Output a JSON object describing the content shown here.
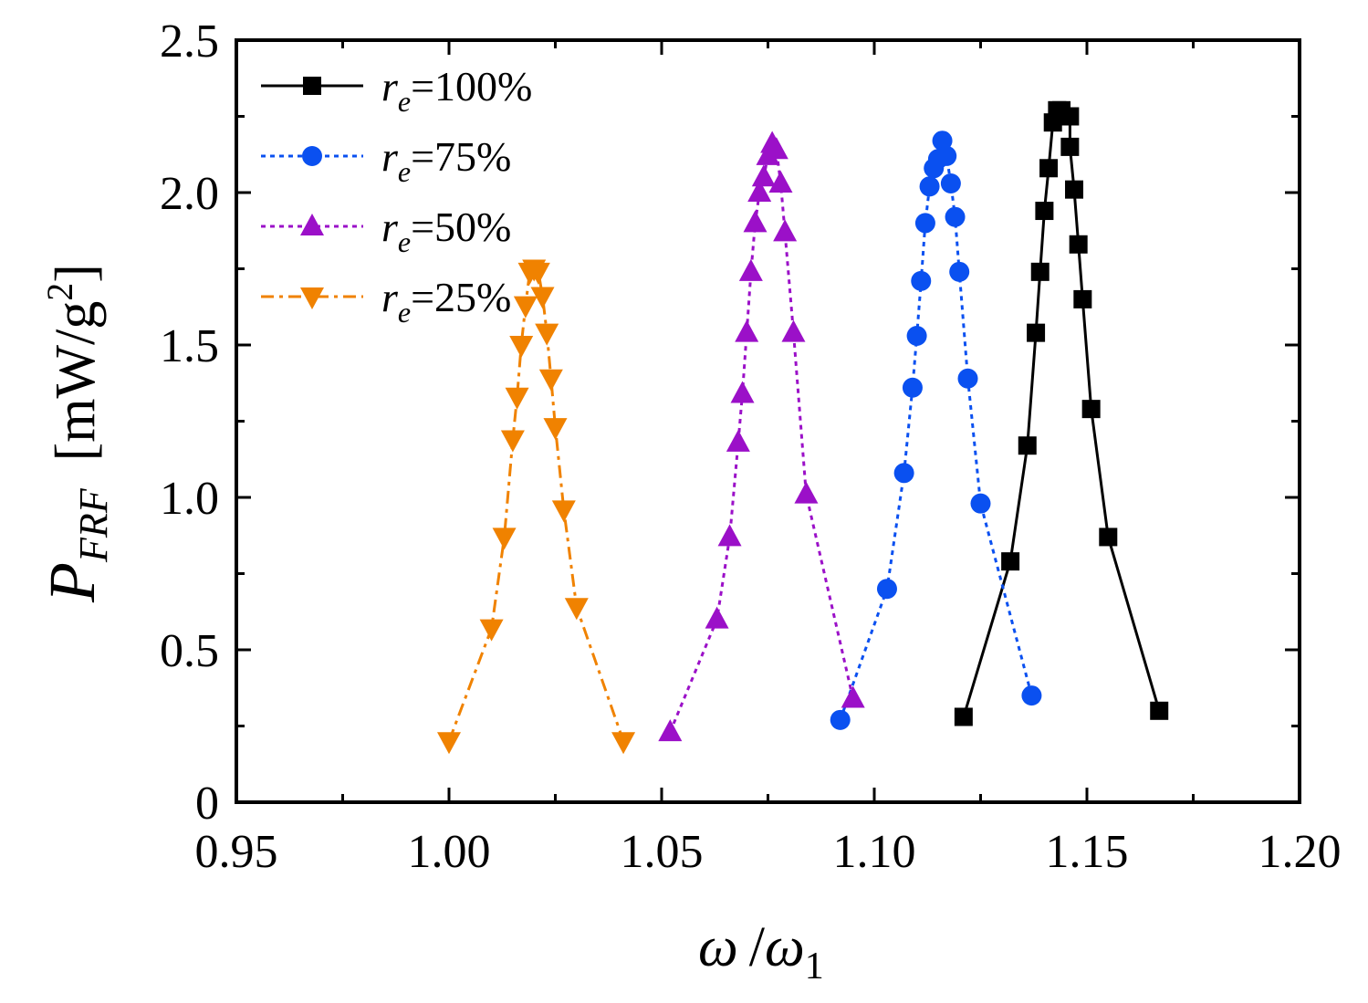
{
  "chart_data": {
    "type": "line",
    "title": "",
    "xlabel": "ω / ω1",
    "xlabel_parts": {
      "main": "ω",
      "slash": "/",
      "sym": "ω",
      "sub": "1"
    },
    "ylabel": "P_FRF [mW/g2]",
    "ylabel_parts": {
      "main": "P",
      "sub": "FRF",
      "unit_open": "[mW/g",
      "unit_sup": "2",
      "unit_close": "]"
    },
    "xlim": [
      0.95,
      1.2
    ],
    "ylim": [
      0,
      2.5
    ],
    "x_ticks": [
      0.95,
      1.0,
      1.05,
      1.1,
      1.15,
      1.2
    ],
    "x_tick_labels": [
      "0.95",
      "1.00",
      "1.05",
      "1.10",
      "1.15",
      "1.20"
    ],
    "y_ticks": [
      0,
      0.5,
      1.0,
      1.5,
      2.0,
      2.5
    ],
    "y_tick_labels": [
      "0",
      "0.5",
      "1.0",
      "1.5",
      "2.0",
      "2.5"
    ],
    "grid": false,
    "legend_position": "top-left",
    "series": [
      {
        "name": "re=100%",
        "legend_var": "r",
        "legend_sub": "e",
        "legend_rest": "=100%",
        "color": "#000000",
        "marker": "square",
        "line_style": "solid",
        "x": [
          1.121,
          1.132,
          1.136,
          1.138,
          1.139,
          1.14,
          1.141,
          1.142,
          1.143,
          1.144,
          1.146,
          1.146,
          1.147,
          1.148,
          1.149,
          1.151,
          1.155,
          1.167
        ],
        "y": [
          0.28,
          0.79,
          1.17,
          1.54,
          1.74,
          1.94,
          2.08,
          2.23,
          2.27,
          2.27,
          2.25,
          2.15,
          2.01,
          1.83,
          1.65,
          1.29,
          0.87,
          0.3
        ]
      },
      {
        "name": "re=75%",
        "legend_var": "r",
        "legend_sub": "e",
        "legend_rest": "=75%",
        "color": "#0a50f0",
        "marker": "circle",
        "line_style": "dotted",
        "x": [
          1.092,
          1.103,
          1.107,
          1.109,
          1.11,
          1.111,
          1.112,
          1.113,
          1.114,
          1.115,
          1.116,
          1.117,
          1.118,
          1.119,
          1.12,
          1.122,
          1.125,
          1.137
        ],
        "y": [
          0.27,
          0.7,
          1.08,
          1.36,
          1.53,
          1.71,
          1.9,
          2.02,
          2.08,
          2.11,
          2.17,
          2.12,
          2.03,
          1.92,
          1.74,
          1.39,
          0.98,
          0.35
        ]
      },
      {
        "name": "re=50%",
        "legend_var": "r",
        "legend_sub": "e",
        "legend_rest": "=50%",
        "color": "#9b10c8",
        "marker": "triangle-up",
        "line_style": "dotted",
        "x": [
          1.052,
          1.063,
          1.066,
          1.068,
          1.069,
          1.07,
          1.071,
          1.072,
          1.073,
          1.074,
          1.075,
          1.076,
          1.077,
          1.078,
          1.079,
          1.081,
          1.084,
          1.095
        ],
        "y": [
          0.23,
          0.6,
          0.87,
          1.18,
          1.34,
          1.54,
          1.74,
          1.9,
          2.0,
          2.05,
          2.12,
          2.16,
          2.14,
          2.03,
          1.87,
          1.54,
          1.01,
          0.34
        ]
      },
      {
        "name": "re=25%",
        "legend_var": "r",
        "legend_sub": "e",
        "legend_rest": "=25%",
        "color": "#f08200",
        "marker": "triangle-down",
        "line_style": "dashdot",
        "x": [
          1.0,
          1.01,
          1.013,
          1.015,
          1.016,
          1.017,
          1.018,
          1.019,
          1.02,
          1.021,
          1.022,
          1.023,
          1.024,
          1.025,
          1.027,
          1.03,
          1.041
        ],
        "y": [
          0.2,
          0.57,
          0.87,
          1.19,
          1.33,
          1.5,
          1.63,
          1.74,
          1.75,
          1.74,
          1.66,
          1.54,
          1.39,
          1.23,
          0.96,
          0.64,
          0.2
        ]
      }
    ]
  }
}
